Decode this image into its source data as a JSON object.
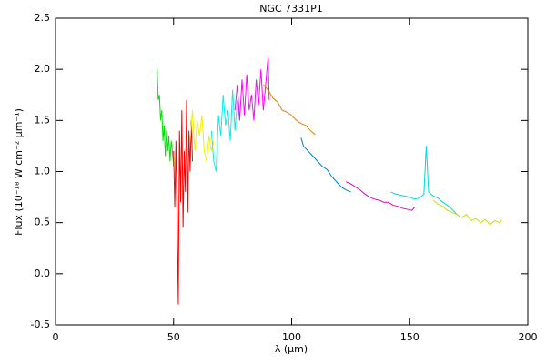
{
  "chart_data": {
    "type": "line",
    "title": "NGC 7331P1",
    "x_label": "λ (μm)",
    "y_label": "Flux (10⁻¹⁸ W cm⁻² μm⁻¹)",
    "xlim": [
      0,
      200
    ],
    "ylim": [
      -0.5,
      2.5
    ],
    "xticks": [
      0,
      50,
      100,
      150,
      200
    ],
    "yticks": [
      -0.5,
      {
        "value": 0,
        "label": "0.0"
      },
      0.5,
      {
        "value": 1,
        "label": "1.0"
      },
      1.5,
      {
        "value": 2,
        "label": "2.0"
      },
      2.5
    ],
    "series": [
      {
        "color": "#00e000",
        "x": [
          43,
          43.5,
          44,
          44.5,
          45,
          45.5,
          46,
          46.5,
          47,
          47.5,
          48,
          48.5,
          49,
          49.5,
          50
        ],
        "values": [
          2.0,
          1.7,
          1.75,
          1.5,
          1.6,
          1.3,
          1.45,
          1.15,
          1.4,
          1.2,
          1.35,
          1.1,
          1.3,
          1.2,
          1.05
        ]
      },
      {
        "color": "#ff0000",
        "x": [
          50,
          50.5,
          51,
          51.5,
          52,
          52.5,
          53,
          53.5,
          54,
          54.5,
          55,
          55.5,
          56,
          56.5,
          57,
          57.5,
          58
        ],
        "values": [
          1.2,
          0.65,
          1.3,
          0.55,
          -0.3,
          1.4,
          0.7,
          1.6,
          0.45,
          1.2,
          0.8,
          1.7,
          0.6,
          1.4,
          1.0,
          1.5,
          1.1
        ]
      },
      {
        "color": "#f0f000",
        "x": [
          57,
          58,
          59,
          60,
          61,
          62,
          63,
          64,
          65,
          66,
          67
        ],
        "values": [
          1.3,
          1.6,
          1.2,
          1.5,
          1.35,
          1.55,
          1.2,
          1.1,
          1.35,
          1.2,
          1.3
        ]
      },
      {
        "color": "#00f0f0",
        "x": [
          66,
          67,
          68,
          69,
          70,
          71,
          72,
          73,
          74,
          75,
          76,
          77,
          78
        ],
        "values": [
          1.4,
          1.1,
          1.0,
          1.55,
          1.35,
          1.75,
          1.45,
          1.6,
          1.3,
          1.8,
          1.4,
          1.7,
          1.5
        ]
      },
      {
        "color": "#ff00ff",
        "x": [
          76,
          77,
          78,
          79,
          80,
          81,
          82,
          83,
          84,
          85,
          86,
          87,
          88,
          89,
          90,
          90.5
        ],
        "values": [
          1.6,
          1.85,
          1.5,
          1.9,
          1.55,
          1.95,
          1.6,
          1.75,
          1.5,
          1.9,
          1.65,
          2.0,
          1.6,
          1.85,
          2.12,
          1.7
        ]
      },
      {
        "color": "#e08000",
        "x": [
          88,
          90,
          92,
          94,
          96,
          98,
          100,
          102,
          104,
          106,
          108,
          110
        ],
        "values": [
          1.85,
          1.8,
          1.72,
          1.68,
          1.6,
          1.58,
          1.55,
          1.5,
          1.47,
          1.45,
          1.4,
          1.36
        ]
      },
      {
        "color": "#0080c0",
        "x": [
          104,
          105,
          107,
          109,
          111,
          113,
          115,
          117,
          119,
          121,
          123,
          125
        ],
        "values": [
          1.33,
          1.25,
          1.2,
          1.15,
          1.1,
          1.05,
          1.02,
          0.95,
          0.9,
          0.85,
          0.82,
          0.8
        ]
      },
      {
        "color": "#e000c0",
        "x": [
          123,
          125,
          127,
          129,
          131,
          133,
          135,
          137,
          139,
          141,
          143,
          145,
          147,
          149,
          151,
          152
        ],
        "values": [
          0.9,
          0.88,
          0.85,
          0.82,
          0.78,
          0.75,
          0.73,
          0.72,
          0.7,
          0.7,
          0.67,
          0.66,
          0.64,
          0.63,
          0.62,
          0.65
        ]
      },
      {
        "color": "#00d8d8",
        "x": [
          142,
          144,
          146,
          148,
          150,
          152,
          154,
          156,
          157,
          158,
          160,
          162,
          164,
          166,
          168,
          170,
          172
        ],
        "values": [
          0.8,
          0.78,
          0.77,
          0.76,
          0.75,
          0.73,
          0.74,
          0.78,
          1.25,
          0.8,
          0.76,
          0.74,
          0.7,
          0.67,
          0.63,
          0.58,
          0.55
        ]
      },
      {
        "color": "#c8e000",
        "x": [
          160,
          162,
          164,
          166,
          168,
          170,
          172,
          174,
          176,
          178,
          180,
          182,
          184,
          186,
          188,
          189
        ],
        "values": [
          0.72,
          0.68,
          0.66,
          0.62,
          0.6,
          0.58,
          0.55,
          0.58,
          0.52,
          0.54,
          0.5,
          0.53,
          0.48,
          0.52,
          0.5,
          0.53
        ]
      }
    ]
  }
}
